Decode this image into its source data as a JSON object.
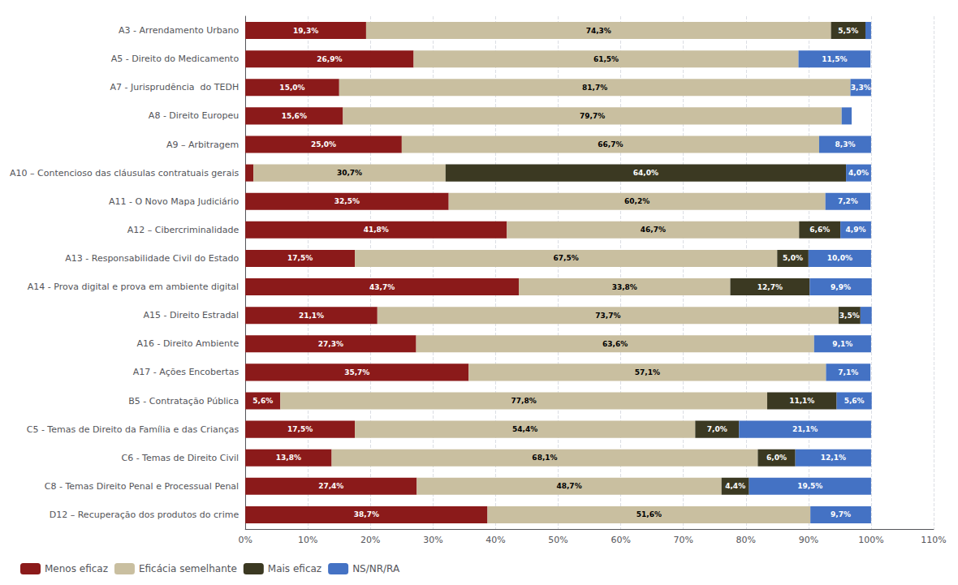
{
  "chart_data": {
    "type": "bar",
    "orientation": "horizontal",
    "stacked": true,
    "data_labels": true,
    "grid": true,
    "legend": "lower left",
    "categories": [
      "A3 - Arrendamento Urbano",
      "A5 - Direito do Medicamento",
      "A7 - Jurisprudência  do TEDH",
      "A8 - Direito Europeu",
      "A9 – Arbitragem",
      "A10 – Contencioso das cláusulas contratuais gerais",
      "A11 - O Novo Mapa Judiciário",
      "A12 – Cibercriminalidade",
      "A13 - Responsabilidade Civil do Estado",
      "A14 - Prova digital e prova em ambiente digital",
      "A15 - Direito Estradal",
      "A16 - Direito Ambiente",
      "A17 - Ações Encobertas",
      "B5 - Contratação Pública",
      "C5 - Temas de Direito da Família e das Crianças",
      "C6 - Temas de Direito Civil",
      "C8 - Temas Direito Penal e Processual Penal",
      "D12 – Recuperação dos produtos do crime"
    ],
    "series": [
      {
        "name": "Menos eficaz",
        "color": "#8B1A1A",
        "values": [
          19.3,
          26.9,
          15.0,
          15.6,
          25.0,
          1.3,
          32.5,
          41.8,
          17.5,
          43.7,
          21.1,
          27.3,
          35.7,
          5.6,
          17.5,
          13.8,
          27.4,
          38.7
        ],
        "value_labels": [
          "19,3%",
          "26,9%",
          "15,0%",
          "15,6%",
          "25,0%",
          null,
          "32,5%",
          "41,8%",
          "17,5%",
          "43,7%",
          "21,1%",
          "27,3%",
          "35,7%",
          "5,6%",
          "17,5%",
          "13,8%",
          "27,4%",
          "38,7%"
        ]
      },
      {
        "name": "Eficácia semelhante",
        "color": "#C9BFA0",
        "values": [
          74.3,
          61.5,
          81.7,
          79.7,
          66.7,
          30.7,
          60.2,
          46.7,
          67.5,
          33.8,
          73.7,
          63.6,
          57.1,
          77.8,
          54.4,
          68.1,
          48.7,
          51.6
        ],
        "value_labels": [
          "74,3%",
          "61,5%",
          "81,7%",
          "79,7%",
          "66,7%",
          "30,7%",
          "60,2%",
          "46,7%",
          "67,5%",
          "33,8%",
          "73,7%",
          "63,6%",
          "57,1%",
          "77,8%",
          "54,4%",
          "68,1%",
          "48,7%",
          "51,6%"
        ]
      },
      {
        "name": "Mais eficaz",
        "color": "#3B3922",
        "values": [
          5.5,
          0.0,
          0.0,
          0.0,
          0.0,
          64.0,
          0.0,
          6.6,
          5.0,
          12.7,
          3.5,
          0.0,
          0.0,
          11.1,
          7.0,
          6.0,
          4.4,
          0.0
        ],
        "value_labels": [
          "5,5%",
          null,
          null,
          null,
          null,
          "64,0%",
          null,
          "6,6%",
          "5,0%",
          "12,7%",
          "3,5%",
          null,
          null,
          "11,1%",
          "7,0%",
          "6,0%",
          "4,4%",
          null
        ]
      },
      {
        "name": "NS/NR/RA",
        "color": "#4472C4",
        "values": [
          0.9,
          11.5,
          3.3,
          1.6,
          8.3,
          4.0,
          7.2,
          4.9,
          10.0,
          9.9,
          1.8,
          9.1,
          7.1,
          5.6,
          21.1,
          12.1,
          19.5,
          9.7
        ],
        "value_labels": [
          null,
          "11,5%",
          "3,3%",
          null,
          "8,3%",
          "4,0%",
          "7,2%",
          "4,9%",
          "10,0%",
          "9,9%",
          null,
          "9,1%",
          "7,1%",
          "5,6%",
          "21,1%",
          "12,1%",
          "19,5%",
          "9,7%"
        ]
      }
    ],
    "xlim": [
      0,
      110
    ],
    "xticks": [
      {
        "value": 0,
        "label": "0%"
      },
      {
        "value": 10,
        "label": "10%"
      },
      {
        "value": 20,
        "label": "20%"
      },
      {
        "value": 30,
        "label": "30%"
      },
      {
        "value": 40,
        "label": "40%"
      },
      {
        "value": 50,
        "label": "50%"
      },
      {
        "value": 60,
        "label": "60%"
      },
      {
        "value": 70,
        "label": "70%"
      },
      {
        "value": 80,
        "label": "80%"
      },
      {
        "value": 90,
        "label": "90%"
      },
      {
        "value": 100,
        "label": "100%"
      },
      {
        "value": 110,
        "label": "110%"
      }
    ]
  }
}
